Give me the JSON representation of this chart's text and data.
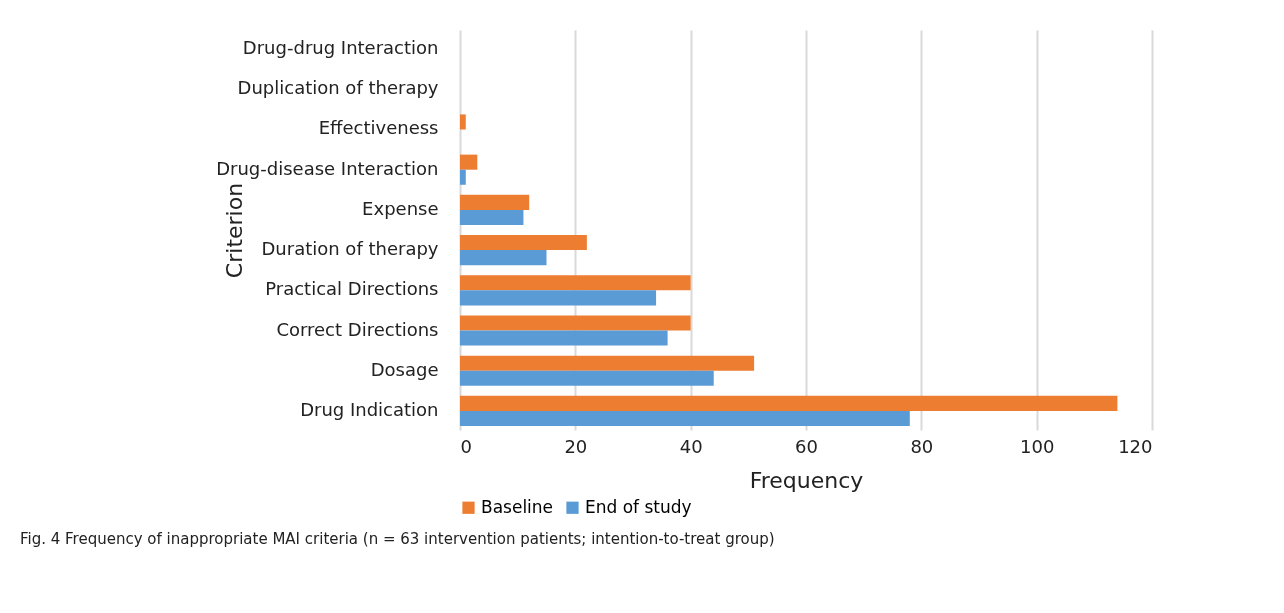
{
  "chart_data": {
    "type": "bar",
    "orientation": "horizontal",
    "title": "Fig. 4  Frequency of inappropriate MAI criteria (n = 63 intervention patients; intention-to-treat group)",
    "xlabel": "Frequency",
    "ylabel": "Criterion",
    "categories": [
      "Drug-drug Interaction",
      "Duplication of therapy",
      "Effectiveness",
      "Drug-disease Interaction",
      "Expense",
      "Duration of therapy",
      "Practical Directions",
      "Correct Directions",
      "Dosage",
      "Drug Indication"
    ],
    "series": [
      {
        "name": "Baseline",
        "color": "#ed7d31",
        "values": [
          0,
          0,
          1,
          3,
          12,
          22,
          40,
          40,
          51,
          114
        ]
      },
      {
        "name": "End of study",
        "color": "#5b9bd5",
        "values": [
          0,
          0,
          0,
          1,
          11,
          15,
          34,
          36,
          44,
          78
        ]
      }
    ],
    "xlim": [
      0,
      120
    ],
    "xticks": [
      0,
      20,
      40,
      60,
      80,
      100,
      120
    ],
    "grid": "x",
    "legend": "bottom"
  }
}
